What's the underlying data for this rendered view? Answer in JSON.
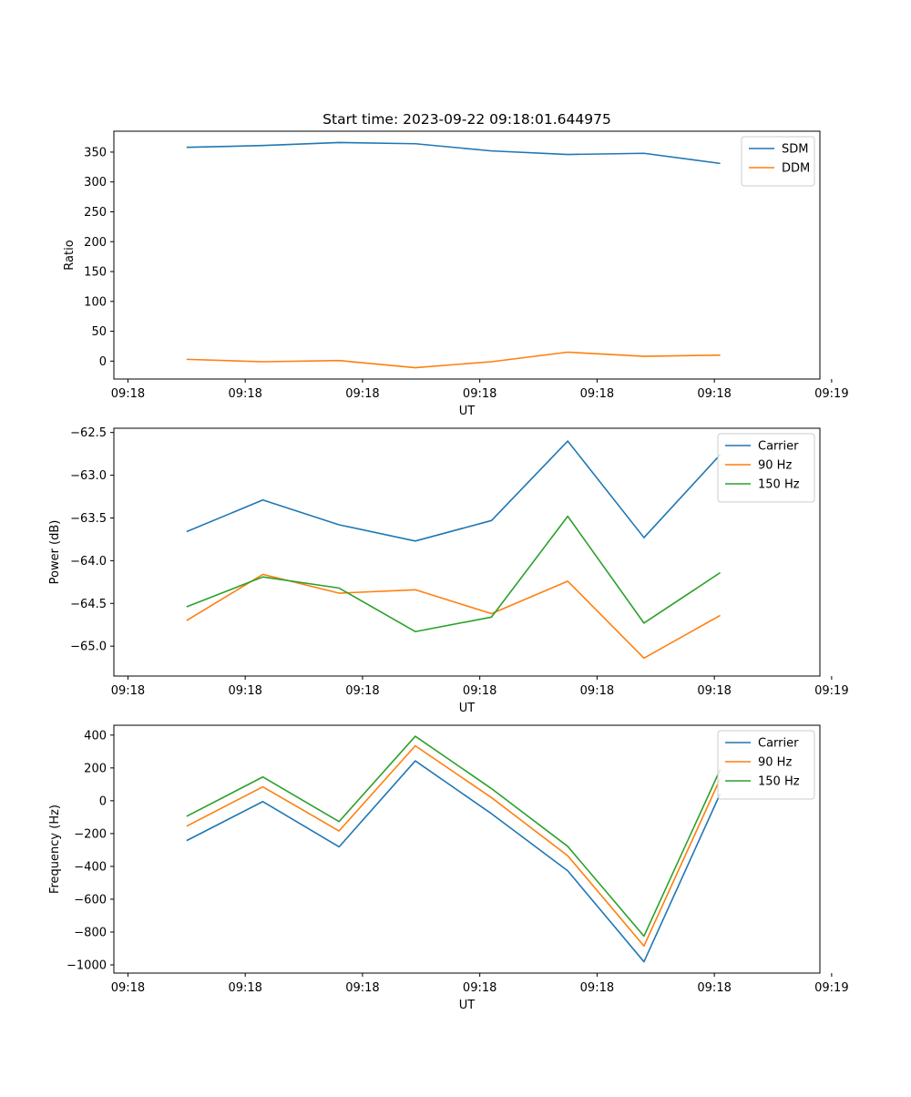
{
  "chart_data": [
    {
      "type": "line",
      "title": "Start time: 2023-09-22 09:18:01.644975",
      "xlabel": "UT",
      "ylabel": "Ratio",
      "ylim": [
        -30,
        385
      ],
      "yticks": [
        0,
        50,
        100,
        150,
        200,
        250,
        300,
        350
      ],
      "x": [
        0.5,
        1.15,
        1.8,
        2.45,
        3.1,
        3.75,
        4.4,
        5.05
      ],
      "xlim": [
        -0.12,
        5.9
      ],
      "xticks": [
        0,
        1,
        2,
        3,
        4,
        5,
        6
      ],
      "xtick_labels": [
        "09:18",
        "09:18",
        "09:18",
        "09:18",
        "09:18",
        "09:18",
        "09:19"
      ],
      "legend": "top-right",
      "series": [
        {
          "name": "SDM",
          "color": "#1f77b4",
          "values": [
            358,
            361,
            366,
            364,
            352,
            346,
            348,
            331
          ]
        },
        {
          "name": "DDM",
          "color": "#ff7f0e",
          "values": [
            3,
            -1,
            1,
            -11,
            -1,
            15,
            8,
            10
          ]
        }
      ]
    },
    {
      "type": "line",
      "title": "",
      "xlabel": "UT",
      "ylabel": "Power (dB)",
      "ylim": [
        -65.35,
        -62.45
      ],
      "yticks": [
        -65.0,
        -64.5,
        -64.0,
        -63.5,
        -63.0,
        -62.5
      ],
      "ytick_labels": [
        "−65.0",
        "−64.5",
        "−64.0",
        "−63.5",
        "−63.0",
        "−62.5"
      ],
      "x": [
        0.5,
        1.15,
        1.8,
        2.45,
        3.1,
        3.75,
        4.4,
        5.05
      ],
      "xlim": [
        -0.12,
        5.9
      ],
      "xticks": [
        0,
        1,
        2,
        3,
        4,
        5,
        6
      ],
      "xtick_labels": [
        "09:18",
        "09:18",
        "09:18",
        "09:18",
        "09:18",
        "09:18",
        "09:19"
      ],
      "legend": "top-right",
      "series": [
        {
          "name": "Carrier",
          "color": "#1f77b4",
          "values": [
            -63.66,
            -63.29,
            -63.58,
            -63.77,
            -63.53,
            -62.6,
            -63.73,
            -62.76
          ]
        },
        {
          "name": "90 Hz",
          "color": "#ff7f0e",
          "values": [
            -64.7,
            -64.16,
            -64.38,
            -64.34,
            -64.62,
            -64.24,
            -65.14,
            -64.64
          ]
        },
        {
          "name": "150 Hz",
          "color": "#2ca02c",
          "values": [
            -64.54,
            -64.19,
            -64.32,
            -64.83,
            -64.66,
            -63.48,
            -64.73,
            -64.14
          ]
        }
      ]
    },
    {
      "type": "line",
      "title": "",
      "xlabel": "UT",
      "ylabel": "Frequency (Hz)",
      "ylim": [
        -1050,
        460
      ],
      "yticks": [
        -1000,
        -800,
        -600,
        -400,
        -200,
        0,
        200,
        400
      ],
      "ytick_labels": [
        "−1000",
        "−800",
        "−600",
        "−400",
        "−200",
        "0",
        "200",
        "400"
      ],
      "x": [
        0.5,
        1.15,
        1.8,
        2.45,
        3.1,
        3.75,
        4.4,
        5.05
      ],
      "xlim": [
        -0.12,
        5.9
      ],
      "xticks": [
        0,
        1,
        2,
        3,
        4,
        5,
        6
      ],
      "xtick_labels": [
        "09:18",
        "09:18",
        "09:18",
        "09:18",
        "09:18",
        "09:18",
        "09:19"
      ],
      "legend": "top-right",
      "series": [
        {
          "name": "Carrier",
          "color": "#1f77b4",
          "values": [
            -243,
            -5,
            -281,
            243,
            -79,
            -427,
            -981,
            43
          ]
        },
        {
          "name": "90 Hz",
          "color": "#ff7f0e",
          "values": [
            -155,
            85,
            -184,
            335,
            19,
            -335,
            -885,
            134
          ]
        },
        {
          "name": "150 Hz",
          "color": "#2ca02c",
          "values": [
            -95,
            145,
            -127,
            393,
            74,
            -278,
            -825,
            190
          ]
        }
      ]
    }
  ]
}
